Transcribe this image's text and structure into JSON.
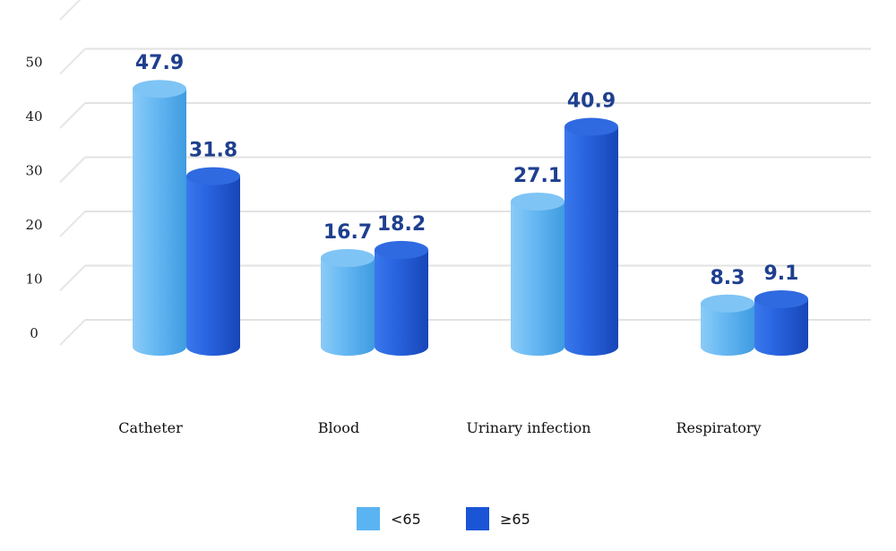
{
  "chart_data": {
    "type": "bar",
    "categories": [
      "Catheter",
      "Blood",
      "Urinary infection",
      "Respiratory"
    ],
    "series": [
      {
        "name": "<65",
        "values": [
          47.9,
          16.7,
          27.1,
          8.3
        ],
        "color": "#5ab4f2"
      },
      {
        "name": "≥65",
        "values": [
          31.8,
          18.2,
          40.9,
          9.1
        ],
        "color": "#1a55d6"
      }
    ],
    "data_labels": [
      [
        "47.9",
        "16.7",
        "27.1",
        "8.3"
      ],
      [
        "31.8",
        "18.2",
        "40.9",
        "9.1"
      ]
    ],
    "yticks": [
      "0",
      "10",
      "20",
      "30",
      "40",
      "50"
    ],
    "ylim": [
      0,
      50
    ],
    "grid": true,
    "style": "3d-cylinder",
    "legend_position": "bottom-center",
    "title": "",
    "xlabel": "",
    "ylabel": ""
  }
}
